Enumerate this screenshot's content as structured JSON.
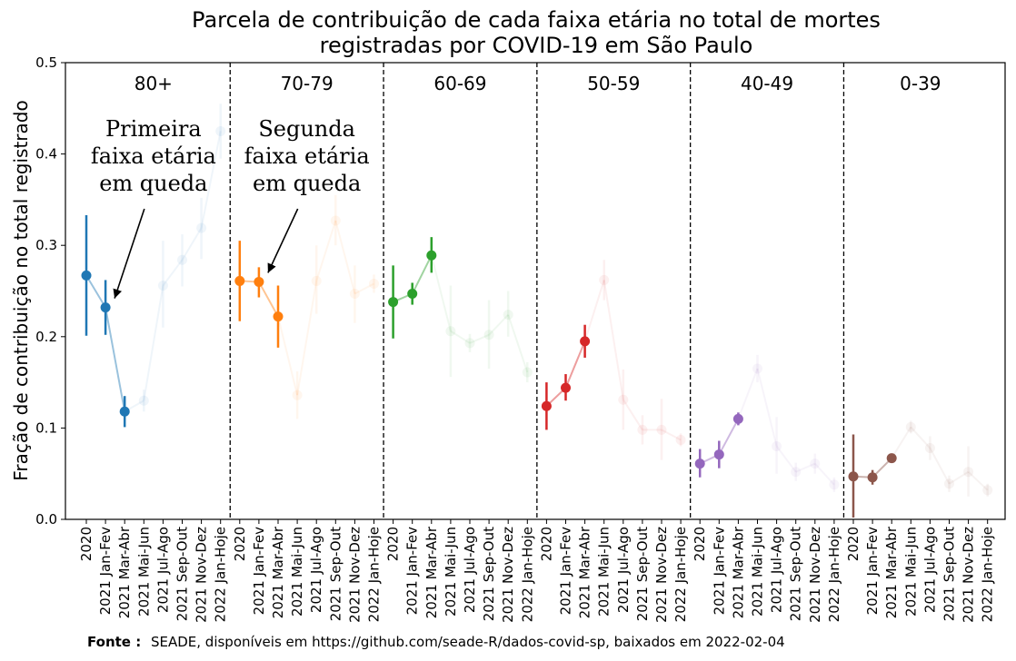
{
  "title_lines": [
    "Parcela de contribuição de cada faixa etária no total de mortes",
    "registradas por COVID-19 em São Paulo"
  ],
  "source": {
    "label": "Fonte :",
    "text": "SEADE, disponíveis em https://github.com/seade-R/dados-covid-sp, baixados em 2022-02-04"
  },
  "chart_data": {
    "type": "scatter",
    "title": "Parcela de contribuição de cada faixa etária no total de mortes registradas por COVID-19 em São Paulo",
    "xlabel": "",
    "ylabel": "Fração de contribuição no total registrado",
    "ylim": [
      0.0,
      0.5
    ],
    "yticks": [
      "0.0",
      "0.1",
      "0.2",
      "0.3",
      "0.4",
      "0.5"
    ],
    "grid": false,
    "periods": [
      "2020",
      "2021 Jan-Fev",
      "2021 Mar-Abr",
      "2021 Mai-Jun",
      "2021 Jul-Ago",
      "2021 Sep-Out",
      "2021 Nov-Dez",
      "2022 Jan-Hoje"
    ],
    "highlighted_points_per_group": [
      3,
      3,
      3,
      3,
      3,
      3
    ],
    "series": [
      {
        "name": "80+",
        "color": "#1f77b4",
        "values": [
          0.267,
          0.232,
          0.118,
          0.13,
          0.256,
          0.284,
          0.319,
          0.425
        ],
        "lower": [
          0.201,
          0.202,
          0.101,
          0.118,
          0.21,
          0.255,
          0.285,
          0.395
        ],
        "upper": [
          0.333,
          0.262,
          0.135,
          0.142,
          0.305,
          0.312,
          0.352,
          0.455
        ]
      },
      {
        "name": "70-79",
        "color": "#ff7f0e",
        "values": [
          0.261,
          0.26,
          0.222,
          0.136,
          0.261,
          0.327,
          0.247,
          0.258
        ],
        "lower": [
          0.217,
          0.243,
          0.188,
          0.11,
          0.225,
          0.3,
          0.215,
          0.248
        ],
        "upper": [
          0.305,
          0.276,
          0.256,
          0.162,
          0.3,
          0.355,
          0.278,
          0.268
        ]
      },
      {
        "name": "60-69",
        "color": "#2ca02c",
        "values": [
          0.238,
          0.247,
          0.289,
          0.206,
          0.193,
          0.202,
          0.224,
          0.161
        ],
        "lower": [
          0.198,
          0.235,
          0.27,
          0.156,
          0.183,
          0.165,
          0.2,
          0.15
        ],
        "upper": [
          0.278,
          0.259,
          0.309,
          0.256,
          0.203,
          0.24,
          0.25,
          0.172
        ]
      },
      {
        "name": "50-59",
        "color": "#d62728",
        "values": [
          0.124,
          0.144,
          0.195,
          0.262,
          0.131,
          0.098,
          0.098,
          0.087
        ],
        "lower": [
          0.098,
          0.13,
          0.177,
          0.24,
          0.098,
          0.082,
          0.065,
          0.08
        ],
        "upper": [
          0.15,
          0.159,
          0.213,
          0.284,
          0.164,
          0.114,
          0.132,
          0.094
        ]
      },
      {
        "name": "40-49",
        "color": "#9467bd",
        "values": [
          0.061,
          0.071,
          0.11,
          0.165,
          0.08,
          0.052,
          0.061,
          0.038
        ],
        "lower": [
          0.046,
          0.056,
          0.103,
          0.15,
          0.05,
          0.042,
          0.05,
          0.03
        ],
        "upper": [
          0.077,
          0.086,
          0.117,
          0.18,
          0.112,
          0.062,
          0.072,
          0.046
        ]
      },
      {
        "name": "0-39",
        "color": "#8c564b",
        "values": [
          0.047,
          0.046,
          0.067,
          0.101,
          0.078,
          0.039,
          0.052,
          0.032
        ],
        "lower": [
          0.002,
          0.038,
          0.064,
          0.094,
          0.065,
          0.03,
          0.025,
          0.025
        ],
        "upper": [
          0.093,
          0.054,
          0.07,
          0.108,
          0.091,
          0.048,
          0.08,
          0.039
        ]
      }
    ],
    "annotations": [
      {
        "group": "80+",
        "lines": [
          "Primeira",
          "faixa etária",
          "em queda"
        ]
      },
      {
        "group": "70-79",
        "lines": [
          "Segunda",
          "faixa etária",
          "em queda"
        ]
      }
    ]
  }
}
